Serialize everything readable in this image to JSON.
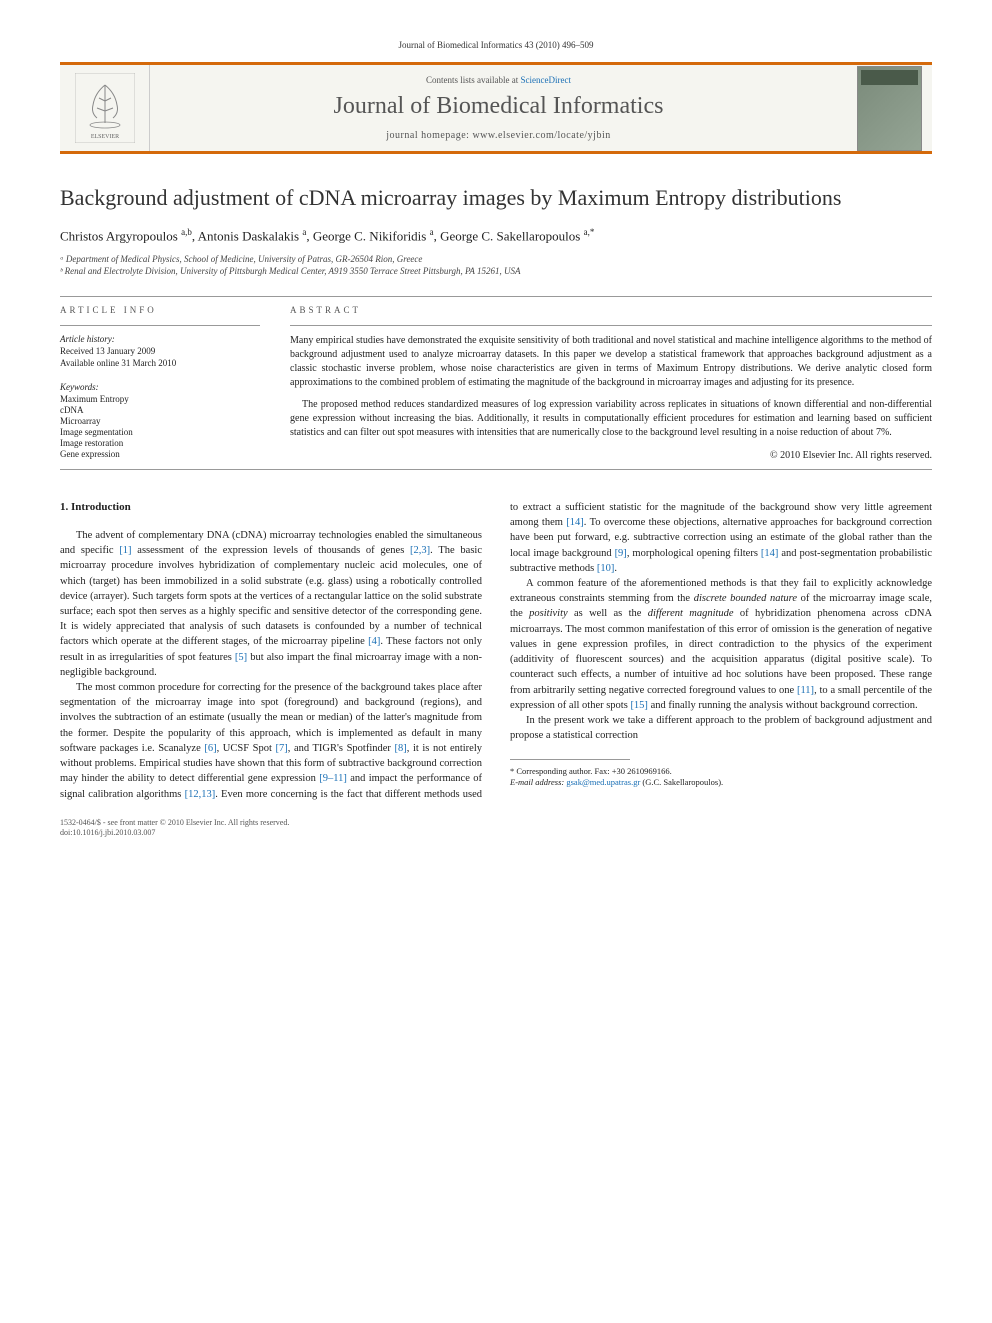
{
  "header": {
    "citation": "Journal of Biomedical Informatics 43 (2010) 496–509"
  },
  "banner": {
    "contents_prefix": "Contents lists available at ",
    "contents_link": "ScienceDirect",
    "journal_name": "Journal of Biomedical Informatics",
    "homepage_label": "journal homepage: www.elsevier.com/locate/yjbin"
  },
  "title": "Background adjustment of cDNA microarray images by Maximum Entropy distributions",
  "authors_html": "Christos Argyropoulos <sup>a,b</sup>, Antonis Daskalakis <sup>a</sup>, George C. Nikiforidis <sup>a</sup>, George C. Sakellaropoulos <sup>a,*</sup>",
  "affiliations": [
    "ᵃ Department of Medical Physics, School of Medicine, University of Patras, GR-26504 Rion, Greece",
    "ᵇ Renal and Electrolyte Division, University of Pittsburgh Medical Center, A919 3550 Terrace Street Pittsburgh, PA 15261, USA"
  ],
  "article_info": {
    "label": "ARTICLE INFO",
    "history_label": "Article history:",
    "history": [
      "Received 13 January 2009",
      "Available online 31 March 2010"
    ],
    "keywords_label": "Keywords:",
    "keywords": [
      "Maximum Entropy",
      "cDNA",
      "Microarray",
      "Image segmentation",
      "Image restoration",
      "Gene expression"
    ]
  },
  "abstract": {
    "label": "ABSTRACT",
    "paragraphs": [
      "Many empirical studies have demonstrated the exquisite sensitivity of both traditional and novel statistical and machine intelligence algorithms to the method of background adjustment used to analyze microarray datasets. In this paper we develop a statistical framework that approaches background adjustment as a classic stochastic inverse problem, whose noise characteristics are given in terms of Maximum Entropy distributions. We derive analytic closed form approximations to the combined problem of estimating the magnitude of the background in microarray images and adjusting for its presence.",
      "The proposed method reduces standardized measures of log expression variability across replicates in situations of known differential and non-differential gene expression without increasing the bias. Additionally, it results in computationally efficient procedures for estimation and learning based on sufficient statistics and can filter out spot measures with intensities that are numerically close to the background level resulting in a noise reduction of about 7%."
    ],
    "copyright": "© 2010 Elsevier Inc. All rights reserved."
  },
  "body": {
    "heading": "1. Introduction",
    "paragraphs": [
      "The advent of complementary DNA (cDNA) microarray technologies enabled the simultaneous and specific [1] assessment of the expression levels of thousands of genes [2,3]. The basic microarray procedure involves hybridization of complementary nucleic acid molecules, one of which (target) has been immobilized in a solid substrate (e.g. glass) using a robotically controlled device (arrayer). Such targets form spots at the vertices of a rectangular lattice on the solid substrate surface; each spot then serves as a highly specific and sensitive detector of the corresponding gene. It is widely appreciated that analysis of such datasets is confounded by a number of technical factors which operate at the different stages, of the microarray pipeline [4]. These factors not only result in as irregularities of spot features [5] but also impart the final microarray image with a non-negligible background.",
      "The most common procedure for correcting for the presence of the background takes place after segmentation of the microarray image into spot (foreground) and background (regions), and involves the subtraction of an estimate (usually the mean or median) of the latter's magnitude from the former. Despite the popularity of this approach, which is implemented as default in many software packages i.e. Scanalyze [6], UCSF Spot [7], and TIGR's Spotfinder [8], it is not entirely without problems. Empirical studies have shown that this form of subtractive background correction may hinder the ability to detect differential gene expression [9–11] and impact the performance of signal calibration algorithms [12,13]. Even more concerning is the fact that different methods used to extract a sufficient statistic for the magnitude of the background show very little agreement among them [14]. To overcome these objections, alternative approaches for background correction have been put forward, e.g. subtractive correction using an estimate of the global rather than the local image background [9], morphological opening filters [14] and post-segmentation probabilistic subtractive methods [10].",
      "A common feature of the aforementioned methods is that they fail to explicitly acknowledge extraneous constraints stemming from the discrete bounded nature of the microarray image scale, the positivity as well as the different magnitude of hybridization phenomena across cDNA microarrays. The most common manifestation of this error of omission is the generation of negative values in gene expression profiles, in direct contradiction to the physics of the experiment (additivity of fluorescent sources) and the acquisition apparatus (digital positive scale). To counteract such effects, a number of intuitive ad hoc solutions have been proposed. These range from arbitrarily setting negative corrected foreground values to one [11], to a small percentile of the expression of all other spots [15] and finally running the analysis without background correction.",
      "In the present work we take a different approach to the problem of background adjustment and propose a statistical correction"
    ]
  },
  "footnote": {
    "corresponding": "* Corresponding author. Fax: +30 2610969166.",
    "email_label": "E-mail address:",
    "email": "gsak@med.upatras.gr",
    "email_name": "(G.C. Sakellaropoulos)."
  },
  "footer": {
    "line1": "1532-0464/$ - see front matter © 2010 Elsevier Inc. All rights reserved.",
    "line2": "doi:10.1016/j.jbi.2010.03.007"
  }
}
